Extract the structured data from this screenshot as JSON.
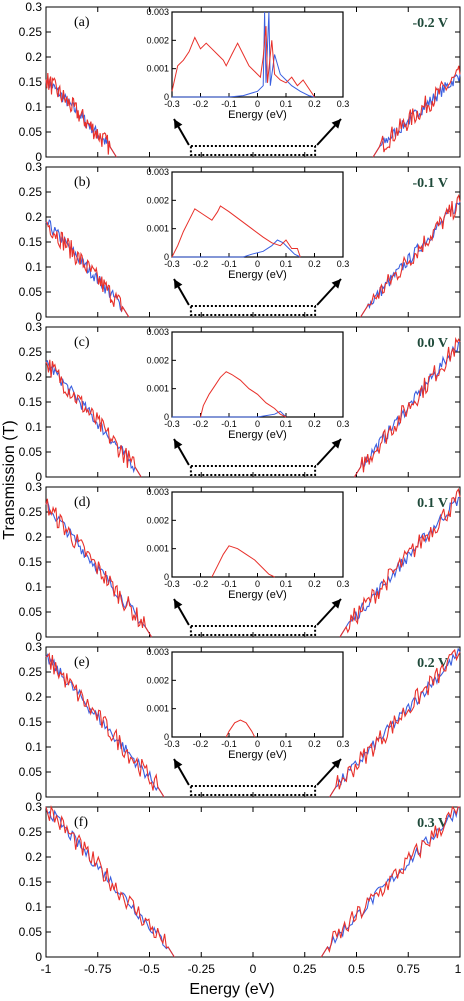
{
  "chart_data": {
    "type": "line",
    "xlabel": "Energy (eV)",
    "ylabel": "Transmission (T)",
    "xlim": [
      -1,
      1
    ],
    "ylim": [
      0,
      0.3
    ],
    "x_ticks": [
      "-1",
      "-0.75",
      "-0.5",
      "-0.25",
      "0",
      "0.25",
      "0.5",
      "0.75",
      "1"
    ],
    "y_ticks": [
      "0",
      "0.05",
      "0.1",
      "0.15",
      "0.2",
      "0.25",
      "0.3"
    ],
    "inset": {
      "xlabel": "Energy (eV)",
      "xlim": [
        -0.3,
        0.3
      ],
      "ylim": [
        0,
        0.003
      ],
      "x_ticks": [
        "-0.3",
        "-0.2",
        "-0.1",
        "0",
        "0.1",
        "0.2",
        "0.3"
      ],
      "y_ticks": [
        "0",
        "0.001",
        "0.002",
        "0.003"
      ]
    },
    "colors": {
      "red": "#e8302a",
      "blue": "#3a5fe0"
    },
    "panels": [
      {
        "label": "(a)",
        "bias": "-0.2 V",
        "left_edge": -0.66,
        "right_edge": 0.58,
        "left_level": 0.155,
        "right_level": 0.165,
        "inset_red": [
          [
            -0.3,
            0.0002
          ],
          [
            -0.28,
            0.0011
          ],
          [
            -0.26,
            0.0013
          ],
          [
            -0.24,
            0.0016
          ],
          [
            -0.22,
            0.0021
          ],
          [
            -0.2,
            0.0017
          ],
          [
            -0.18,
            0.0019
          ],
          [
            -0.16,
            0.0017
          ],
          [
            -0.14,
            0.0015
          ],
          [
            -0.12,
            0.0013
          ],
          [
            -0.11,
            0.0011
          ],
          [
            -0.09,
            0.0015
          ],
          [
            -0.07,
            0.0019
          ],
          [
            -0.05,
            0.0015
          ],
          [
            -0.03,
            0.0011
          ],
          [
            -0.01,
            0.0009
          ],
          [
            0.01,
            0.0007
          ],
          [
            0.02,
            0.0014
          ],
          [
            0.03,
            0.0025
          ],
          [
            0.035,
            0.0005
          ],
          [
            0.05,
            0.002
          ],
          [
            0.06,
            0.0008
          ],
          [
            0.08,
            0.0006
          ],
          [
            0.1,
            0.0005
          ],
          [
            0.12,
            0.0007
          ],
          [
            0.14,
            0.0004
          ],
          [
            0.16,
            0.0006
          ],
          [
            0.18,
            0.0003
          ],
          [
            0.2,
            0.0
          ]
        ],
        "inset_blue": [
          [
            -0.3,
            0
          ],
          [
            -0.1,
            0
          ],
          [
            -0.05,
            5e-05
          ],
          [
            0,
            0.0002
          ],
          [
            0.02,
            0.0004
          ],
          [
            0.025,
            0.0031
          ],
          [
            0.03,
            0.0005
          ],
          [
            0.04,
            0.0031
          ],
          [
            0.045,
            0.0004
          ],
          [
            0.06,
            0.0015
          ],
          [
            0.08,
            0.0008
          ],
          [
            0.1,
            0.0006
          ],
          [
            0.12,
            0.0004
          ],
          [
            0.15,
            0.0002
          ],
          [
            0.18,
            5e-05
          ],
          [
            0.2,
            0
          ]
        ]
      },
      {
        "label": "(b)",
        "bias": "-0.1 V",
        "left_edge": -0.6,
        "right_edge": 0.52,
        "left_level": 0.19,
        "right_level": 0.23,
        "inset_red": [
          [
            -0.3,
            0
          ],
          [
            -0.28,
            0.0004
          ],
          [
            -0.26,
            0.0009
          ],
          [
            -0.24,
            0.0013
          ],
          [
            -0.22,
            0.0017
          ],
          [
            -0.19,
            0.0015
          ],
          [
            -0.16,
            0.0013
          ],
          [
            -0.14,
            0.0016
          ],
          [
            -0.13,
            0.0018
          ],
          [
            -0.1,
            0.0016
          ],
          [
            -0.06,
            0.0013
          ],
          [
            -0.02,
            0.001
          ],
          [
            0.02,
            0.0007
          ],
          [
            0.05,
            0.0005
          ],
          [
            0.08,
            0.0004
          ],
          [
            0.1,
            0.0006
          ],
          [
            0.12,
            0.0003
          ],
          [
            0.14,
            0.0003
          ],
          [
            0.15,
            0
          ]
        ],
        "inset_blue": [
          [
            -0.3,
            0
          ],
          [
            -0.05,
            0
          ],
          [
            -0.02,
            0.0001
          ],
          [
            0.02,
            0.0002
          ],
          [
            0.05,
            0.0004
          ],
          [
            0.07,
            0.0006
          ],
          [
            0.09,
            0.0005
          ],
          [
            0.11,
            0.0003
          ],
          [
            0.13,
            0.0001
          ],
          [
            0.15,
            0
          ]
        ]
      },
      {
        "label": "(c)",
        "bias": "0.0 V",
        "left_edge": -0.54,
        "right_edge": 0.49,
        "left_level": 0.23,
        "right_level": 0.27,
        "inset_red": [
          [
            -0.2,
            0
          ],
          [
            -0.19,
            0.0004
          ],
          [
            -0.17,
            0.0008
          ],
          [
            -0.15,
            0.0011
          ],
          [
            -0.13,
            0.0014
          ],
          [
            -0.11,
            0.0016
          ],
          [
            -0.09,
            0.0015
          ],
          [
            -0.06,
            0.0013
          ],
          [
            -0.03,
            0.001
          ],
          [
            0,
            0.0008
          ],
          [
            0.03,
            0.0005
          ],
          [
            0.06,
            0.0003
          ],
          [
            0.08,
            0.0001
          ],
          [
            0.1,
            0
          ]
        ],
        "inset_blue": [
          [
            -0.3,
            0
          ],
          [
            0.0,
            0
          ],
          [
            0.03,
            5e-05
          ],
          [
            0.06,
            0.0001
          ],
          [
            0.08,
            0.0002
          ],
          [
            0.1,
            0
          ]
        ]
      },
      {
        "label": "(d)",
        "bias": "0.1 V",
        "left_edge": -0.49,
        "right_edge": 0.42,
        "left_level": 0.265,
        "right_level": 0.28,
        "inset_red": [
          [
            -0.16,
            0
          ],
          [
            -0.14,
            0.0004
          ],
          [
            -0.12,
            0.0008
          ],
          [
            -0.1,
            0.0011
          ],
          [
            -0.07,
            0.001
          ],
          [
            -0.04,
            0.0008
          ],
          [
            -0.01,
            0.0006
          ],
          [
            0.02,
            0.0003
          ],
          [
            0.04,
            0.0001
          ],
          [
            0.06,
            0
          ]
        ],
        "inset_blue": []
      },
      {
        "label": "(e)",
        "bias": "0.2 V",
        "left_edge": -0.43,
        "right_edge": 0.37,
        "left_level": 0.28,
        "right_level": 0.29,
        "inset_red": [
          [
            -0.11,
            0
          ],
          [
            -0.1,
            0.0002
          ],
          [
            -0.08,
            0.0005
          ],
          [
            -0.06,
            0.0006
          ],
          [
            -0.04,
            0.0005
          ],
          [
            -0.02,
            0.0002
          ],
          [
            -0.01,
            0
          ]
        ],
        "inset_blue": []
      },
      {
        "label": "(f)",
        "bias": "0.3 V",
        "left_edge": -0.38,
        "right_edge": 0.33,
        "left_level": 0.3,
        "right_level": 0.3,
        "inset_red": [],
        "inset_blue": []
      }
    ]
  }
}
